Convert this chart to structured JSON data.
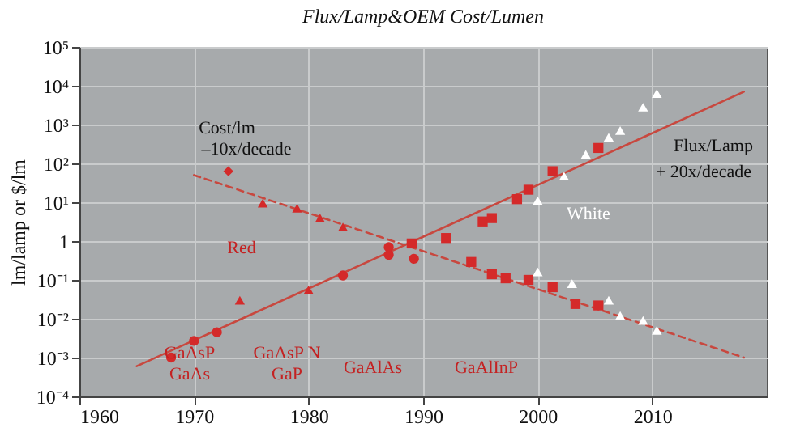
{
  "chart_data": {
    "type": "scatter",
    "title": "Flux/Lamp&OEM Cost/Lumen",
    "ylabel": "lm/lamp or $/lm",
    "xlim": [
      1960,
      2020
    ],
    "xticks": [
      1960,
      1970,
      1980,
      1990,
      2000,
      2010
    ],
    "ylim": [
      0.0001,
      100000
    ],
    "log": true,
    "yticks": [
      {
        "value": 0.0001,
        "label": "10⁻⁴"
      },
      {
        "value": 0.001,
        "label": "10⁻³"
      },
      {
        "value": 0.01,
        "label": "10⁻²"
      },
      {
        "value": 0.1,
        "label": "10⁻¹"
      },
      1,
      {
        "value": 10,
        "label": "10¹"
      },
      {
        "value": 100,
        "label": "10²"
      },
      {
        "value": 1000,
        "label": "10³"
      },
      {
        "value": 10000,
        "label": "10⁴"
      },
      {
        "value": 100000,
        "label": "10⁵"
      }
    ],
    "grid": true,
    "series": [
      {
        "type": "line",
        "color": "#c8483f",
        "line_style": "solid",
        "x": [
          1965,
          2018
        ],
        "values": [
          0.0006,
          7000
        ]
      },
      {
        "type": "line",
        "color": "#c8483f",
        "line_style": "dashed",
        "x": [
          1970,
          2018
        ],
        "values": [
          50,
          0.001
        ]
      },
      {
        "color": "#d42a2a",
        "marker": "circle",
        "x": [
          1968,
          1970,
          1972,
          1983,
          1987
        ],
        "values": [
          0.001,
          0.0027,
          0.0045,
          0.13,
          0.44
        ]
      },
      {
        "color": "#d42a2a",
        "marker": "triangle",
        "x": [
          1974,
          1980
        ],
        "values": [
          0.03,
          0.055
        ]
      },
      {
        "color": "#d42a2a",
        "marker": "square",
        "x": [
          1989,
          1992,
          1995.2,
          1996,
          1998.2,
          1999.2,
          2001.3,
          2005.3
        ],
        "values": [
          0.87,
          1.2,
          3.2,
          3.9,
          12,
          21,
          63,
          250
        ]
      },
      {
        "color": "#ffffff",
        "marker": "triangle",
        "x": [
          2000,
          2002.3,
          2004.2,
          2006.2,
          2007.2,
          2009.2,
          2010.4
        ],
        "values": [
          11,
          47,
          170,
          470,
          700,
          2800,
          6300
        ]
      },
      {
        "color": "#d42a2a",
        "marker": "diamond",
        "x": [
          1973
        ],
        "values": [
          63
        ]
      },
      {
        "color": "#d42a2a",
        "marker": "triangle",
        "x": [
          1976,
          1979,
          1981,
          1983
        ],
        "values": [
          9.5,
          7,
          3.9,
          2.3
        ]
      },
      {
        "color": "#d42a2a",
        "marker": "circle",
        "x": [
          1987,
          1989.2
        ],
        "values": [
          0.7,
          0.35
        ]
      },
      {
        "color": "#d42a2a",
        "marker": "square",
        "x": [
          1994.2,
          1996,
          1997.2,
          1999.2,
          2001.3,
          2003.3,
          2005.3
        ],
        "values": [
          0.29,
          0.14,
          0.11,
          0.1,
          0.065,
          0.024,
          0.022
        ]
      },
      {
        "color": "#ffffff",
        "marker": "triangle",
        "x": [
          2000,
          2003,
          2006.2,
          2007.2,
          2009.2,
          2010.4
        ],
        "values": [
          0.16,
          0.08,
          0.03,
          0.012,
          0.009,
          0.005
        ]
      }
    ],
    "annotations": [
      "Cost/lm",
      "–10x/decade",
      "Red",
      "White",
      "Flux/Lamp",
      "+ 20x/decade",
      "GaAsP",
      "GaAs",
      "GaAsP N",
      "GaP",
      "GaAlAs",
      "GaAlInP"
    ]
  }
}
